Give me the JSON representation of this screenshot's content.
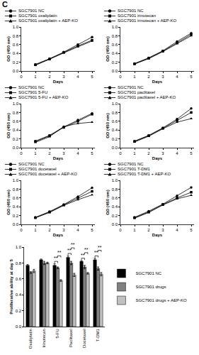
{
  "panel_label": "C",
  "chart_data": [
    {
      "type": "line",
      "xlabel": "Days",
      "ylabel": "OD (450 nm)",
      "legend": "top",
      "grid": false,
      "x": [
        1,
        2,
        3,
        4,
        5
      ],
      "xlim": [
        0,
        5.2
      ],
      "xticks": [
        0,
        1,
        2,
        3,
        4,
        5
      ],
      "ylim": [
        0,
        1
      ],
      "yticks": [
        {
          "value": 0,
          "label": "0.0"
        },
        0.2,
        0.4,
        0.6,
        0.8,
        {
          "value": 1,
          "label": "1.0"
        }
      ],
      "series": [
        {
          "name": "SGC7901 NC",
          "color": "#000000",
          "marker": "circle",
          "line_style": "solid",
          "values": [
            0.15,
            0.28,
            0.43,
            0.6,
            0.77
          ]
        },
        {
          "name": "SGC7901 oxaliplatin",
          "color": "#000000",
          "marker": "square",
          "line_style": "solid",
          "values": [
            0.14,
            0.27,
            0.42,
            0.57,
            0.7
          ]
        },
        {
          "name": "SGC7901 oxaliplatin + AEP-KO",
          "color": "#000000",
          "marker": "triangle-up",
          "line_style": "solid",
          "values": [
            0.13,
            0.27,
            0.42,
            0.55,
            0.68
          ]
        }
      ]
    },
    {
      "type": "line",
      "xlabel": "Days",
      "ylabel": "OD (450 nm)",
      "legend": "top",
      "grid": false,
      "x": [
        1,
        2,
        3,
        4,
        5
      ],
      "xlim": [
        0,
        5.2
      ],
      "xticks": [
        0,
        1,
        2,
        3,
        4,
        5
      ],
      "ylim": [
        0,
        1
      ],
      "yticks": [
        {
          "value": 0,
          "label": "0.0"
        },
        0.2,
        0.4,
        0.6,
        0.8,
        {
          "value": 1,
          "label": "1.0"
        }
      ],
      "series": [
        {
          "name": "SGC7901 NC",
          "color": "#000000",
          "marker": "circle",
          "line_style": "solid",
          "values": [
            0.17,
            0.3,
            0.46,
            0.67,
            0.86
          ]
        },
        {
          "name": "SGC7901 irinotecan",
          "color": "#000000",
          "marker": "square",
          "line_style": "solid",
          "values": [
            0.16,
            0.29,
            0.45,
            0.64,
            0.83
          ]
        },
        {
          "name": "SGC7901 irinotecan + AEP-KO",
          "color": "#000000",
          "marker": "triangle-up",
          "line_style": "solid",
          "values": [
            0.16,
            0.28,
            0.44,
            0.62,
            0.8
          ]
        }
      ]
    },
    {
      "type": "line",
      "xlabel": "Days",
      "ylabel": "OD (450 nm)",
      "legend": "top",
      "grid": false,
      "x": [
        1,
        2,
        3,
        4,
        5
      ],
      "xlim": [
        0,
        5.2
      ],
      "xticks": [
        0,
        1,
        2,
        3,
        4,
        5
      ],
      "ylim": [
        0,
        1
      ],
      "yticks": [
        {
          "value": 0,
          "label": "0.0"
        },
        0.2,
        0.4,
        0.6,
        0.8,
        {
          "value": 1,
          "label": "1.0"
        }
      ],
      "series": [
        {
          "name": "SGC7901 NC",
          "color": "#000000",
          "marker": "circle",
          "line_style": "solid",
          "values": [
            0.15,
            0.28,
            0.47,
            0.63,
            0.78
          ]
        },
        {
          "name": "SGC7901 5-FU",
          "color": "#000000",
          "marker": "square",
          "line_style": "solid",
          "values": [
            0.14,
            0.27,
            0.46,
            0.6,
            0.76
          ]
        },
        {
          "name": "SGC7901 5-FU + AEP-KO",
          "color": "#000000",
          "marker": "triangle-up",
          "line_style": "solid",
          "values": [
            0.12,
            0.25,
            0.48,
            0.55,
            0.58
          ]
        }
      ]
    },
    {
      "type": "line",
      "xlabel": "Days",
      "ylabel": "OD (450 nm)",
      "legend": "top",
      "grid": false,
      "x": [
        1,
        2,
        3,
        4,
        5
      ],
      "xlim": [
        0,
        5.2
      ],
      "xticks": [
        0,
        1,
        2,
        3,
        4,
        5
      ],
      "ylim": [
        0,
        1
      ],
      "yticks": [
        {
          "value": 0,
          "label": "0.0"
        },
        0.2,
        0.4,
        0.6,
        0.8,
        {
          "value": 1,
          "label": "1.0"
        }
      ],
      "series": [
        {
          "name": "SGC7901 NC",
          "color": "#000000",
          "marker": "circle",
          "line_style": "solid",
          "values": [
            0.15,
            0.28,
            0.45,
            0.65,
            0.89
          ]
        },
        {
          "name": "SGC7901 paclitaxel",
          "color": "#000000",
          "marker": "square",
          "line_style": "solid",
          "values": [
            0.14,
            0.27,
            0.44,
            0.62,
            0.8
          ]
        },
        {
          "name": "SGC7901 paclitaxel + AEP-KO",
          "color": "#000000",
          "marker": "triangle-up",
          "line_style": "solid",
          "values": [
            0.13,
            0.26,
            0.43,
            0.58,
            0.66
          ]
        }
      ]
    },
    {
      "type": "line",
      "xlabel": "Days",
      "ylabel": "OD (450 nm)",
      "legend": "top",
      "grid": false,
      "x": [
        1,
        2,
        3,
        4,
        5
      ],
      "xlim": [
        0,
        5.2
      ],
      "xticks": [
        0,
        1,
        2,
        3,
        4,
        5
      ],
      "ylim": [
        0,
        1
      ],
      "yticks": [
        {
          "value": 0,
          "label": "0.0"
        },
        0.2,
        0.4,
        0.6,
        0.8,
        {
          "value": 1,
          "label": "1.0"
        }
      ],
      "series": [
        {
          "name": "SGC7901 NC",
          "color": "#000000",
          "marker": "circle",
          "line_style": "solid",
          "values": [
            0.16,
            0.29,
            0.45,
            0.63,
            0.83
          ]
        },
        {
          "name": "SGC7901 docetaxel",
          "color": "#000000",
          "marker": "square",
          "line_style": "solid",
          "values": [
            0.15,
            0.28,
            0.44,
            0.6,
            0.75
          ]
        },
        {
          "name": "SGC7901 docetaxel + AEP-KO",
          "color": "#000000",
          "marker": "triangle-up",
          "line_style": "solid",
          "values": [
            0.15,
            0.27,
            0.43,
            0.56,
            0.67
          ]
        }
      ]
    },
    {
      "type": "line",
      "xlabel": "Days",
      "ylabel": "OD (450 nm)",
      "legend": "top",
      "grid": false,
      "x": [
        1,
        2,
        3,
        4,
        5
      ],
      "xlim": [
        0,
        5.2
      ],
      "xticks": [
        0,
        1,
        2,
        3,
        4,
        5
      ],
      "ylim": [
        0,
        1
      ],
      "yticks": [
        {
          "value": 0,
          "label": "0.0"
        },
        0.2,
        0.4,
        0.6,
        0.8,
        {
          "value": 1,
          "label": "1.0"
        }
      ],
      "series": [
        {
          "name": "SGC7901 NC",
          "color": "#000000",
          "marker": "circle",
          "line_style": "solid",
          "values": [
            0.16,
            0.3,
            0.46,
            0.65,
            0.84
          ]
        },
        {
          "name": "SGC7901 T-DM1",
          "color": "#000000",
          "marker": "square",
          "line_style": "solid",
          "values": [
            0.15,
            0.28,
            0.45,
            0.6,
            0.73
          ]
        },
        {
          "name": "SGC7901 T-DM1 + AEP-KO",
          "color": "#000000",
          "marker": "triangle-up",
          "line_style": "solid",
          "values": [
            0.14,
            0.27,
            0.44,
            0.58,
            0.66
          ]
        }
      ]
    },
    {
      "type": "bar",
      "ylabel": "Proliferative ability at day 5",
      "legend": "right",
      "grid": false,
      "categories": [
        "Oxaliplatin",
        "Irinotecan",
        "5-FU",
        "Paclitaxel",
        "Docetaxel",
        "T-DM1"
      ],
      "ylim": [
        0,
        1
      ],
      "yticks": [
        {
          "value": 0,
          "label": "0.0"
        },
        0.2,
        0.4,
        0.6,
        0.8,
        {
          "value": 1,
          "label": "1.0"
        }
      ],
      "series": [
        {
          "name": "SGC7901 NC",
          "color": "#000000",
          "values": [
            0.77,
            0.84,
            0.77,
            0.87,
            0.82,
            0.84
          ],
          "errors": [
            0.01,
            0.01,
            0.02,
            0.02,
            0.01,
            0.02
          ]
        },
        {
          "name": "SGC7901 drugs",
          "color": "#808080",
          "values": [
            0.68,
            0.8,
            0.74,
            0.8,
            0.75,
            0.73
          ],
          "errors": [
            0.01,
            0.02,
            0.01,
            0.02,
            0.02,
            0.02
          ]
        },
        {
          "name": "SGC7901 drugs + AEP-KO",
          "color": "#c0c0c0",
          "values": [
            0.7,
            0.8,
            0.58,
            0.65,
            0.67,
            0.66
          ],
          "errors": [
            0.02,
            0.01,
            0.01,
            0.02,
            0.01,
            0.02
          ]
        }
      ],
      "annotations": [
        {
          "category": "5-FU",
          "between": [
            "SGC7901 NC",
            "SGC7901 drugs"
          ],
          "text": "**"
        },
        {
          "category": "5-FU",
          "between": [
            "SGC7901 drugs",
            "SGC7901 drugs + AEP-KO"
          ],
          "text": "**"
        },
        {
          "category": "Paclitaxel",
          "between": [
            "SGC7901 NC",
            "SGC7901 drugs"
          ],
          "text": "**"
        },
        {
          "category": "Paclitaxel",
          "between": [
            "SGC7901 drugs",
            "SGC7901 drugs + AEP-KO"
          ],
          "text": "**"
        },
        {
          "category": "Docetaxel",
          "between": [
            "SGC7901 NC",
            "SGC7901 drugs"
          ],
          "text": "**"
        },
        {
          "category": "Docetaxel",
          "between": [
            "SGC7901 drugs",
            "SGC7901 drugs + AEP-KO"
          ],
          "text": "**"
        },
        {
          "category": "T-DM1",
          "between": [
            "SGC7901 NC",
            "SGC7901 drugs"
          ],
          "text": "**"
        },
        {
          "category": "T-DM1",
          "between": [
            "SGC7901 drugs",
            "SGC7901 drugs + AEP-KO"
          ],
          "text": "**"
        }
      ]
    }
  ]
}
